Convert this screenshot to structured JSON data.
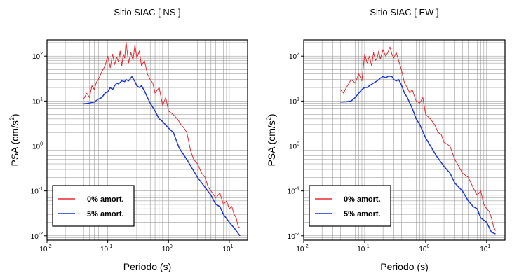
{
  "chart_data": [
    {
      "type": "line",
      "title": "Sitio SIAC [ NS ]",
      "xlabel": "Periodo (s)",
      "ylabel_base": "PSA (cm/s",
      "ylabel_sup": "2",
      "ylabel_end": ")",
      "xscale": "log",
      "yscale": "log",
      "xlim": [
        0.01,
        20
      ],
      "ylim": [
        0.008,
        230
      ],
      "grid": true,
      "legend_position": "bottom-left",
      "x_ticks": [
        {
          "base": "10",
          "exp": "-2"
        },
        {
          "base": "10",
          "exp": "-1"
        },
        {
          "base": "10",
          "exp": "0"
        },
        {
          "base": "10",
          "exp": "1"
        }
      ],
      "y_ticks": [
        {
          "base": "10",
          "exp": "-2"
        },
        {
          "base": "10",
          "exp": "-1"
        },
        {
          "base": "10",
          "exp": "0"
        },
        {
          "base": "10",
          "exp": "1"
        },
        {
          "base": "10",
          "exp": "2"
        }
      ],
      "series": [
        {
          "name": "0% amort.",
          "color": "#e8292e",
          "x": [
            0.04,
            0.045,
            0.05,
            0.055,
            0.06,
            0.065,
            0.07,
            0.08,
            0.09,
            0.1,
            0.11,
            0.12,
            0.13,
            0.14,
            0.15,
            0.16,
            0.17,
            0.18,
            0.19,
            0.2,
            0.22,
            0.24,
            0.26,
            0.28,
            0.3,
            0.33,
            0.36,
            0.4,
            0.45,
            0.5,
            0.55,
            0.6,
            0.7,
            0.8,
            0.9,
            1.0,
            1.2,
            1.4,
            1.6,
            1.8,
            2.0,
            2.3,
            2.6,
            3.0,
            3.5,
            4.0,
            4.5,
            5.0,
            6.0,
            7.0,
            8.0,
            9.0,
            10.0,
            11.0,
            12.0,
            13.0,
            14.0,
            15.0
          ],
          "y": [
            11,
            15,
            12,
            22,
            18,
            26,
            30,
            45,
            60,
            100,
            55,
            110,
            65,
            95,
            75,
            130,
            60,
            110,
            90,
            210,
            70,
            120,
            80,
            180,
            90,
            130,
            60,
            80,
            40,
            30,
            25,
            15,
            20,
            8,
            12,
            6,
            5,
            4,
            3,
            2.5,
            2,
            0.8,
            0.5,
            0.4,
            0.25,
            0.2,
            0.12,
            0.1,
            0.07,
            0.09,
            0.05,
            0.06,
            0.04,
            0.045,
            0.03,
            0.025,
            0.016,
            0.015
          ]
        },
        {
          "name": "5% amort.",
          "color": "#1a35d6",
          "x": [
            0.04,
            0.05,
            0.06,
            0.07,
            0.08,
            0.09,
            0.1,
            0.11,
            0.12,
            0.13,
            0.14,
            0.15,
            0.17,
            0.19,
            0.2,
            0.22,
            0.25,
            0.28,
            0.3,
            0.33,
            0.36,
            0.4,
            0.45,
            0.5,
            0.6,
            0.7,
            0.8,
            1.0,
            1.2,
            1.5,
            2.0,
            2.5,
            3.0,
            4.0,
            5.0,
            6.0,
            7.0,
            8.0,
            10.0,
            12.0,
            15.0
          ],
          "y": [
            8.6,
            9.0,
            9.5,
            11,
            12,
            15,
            16,
            20,
            18,
            22,
            25,
            24,
            28,
            27,
            30,
            28,
            35,
            27,
            22,
            20,
            22,
            17,
            12,
            9,
            6,
            4,
            3.5,
            2.5,
            2,
            0.9,
            0.5,
            0.3,
            0.2,
            0.12,
            0.08,
            0.05,
            0.045,
            0.03,
            0.02,
            0.015,
            0.01
          ]
        }
      ]
    },
    {
      "type": "line",
      "title": "Sitio SIAC [ EW ]",
      "xlabel": "Periodo (s)",
      "ylabel_base": "PSA (cm/s",
      "ylabel_sup": "2",
      "ylabel_end": ")",
      "xscale": "log",
      "yscale": "log",
      "xlim": [
        0.01,
        20
      ],
      "ylim": [
        0.008,
        230
      ],
      "grid": true,
      "legend_position": "bottom-left",
      "x_ticks": [
        {
          "base": "10",
          "exp": "-2"
        },
        {
          "base": "10",
          "exp": "-1"
        },
        {
          "base": "10",
          "exp": "0"
        },
        {
          "base": "10",
          "exp": "1"
        }
      ],
      "y_ticks": [
        {
          "base": "10",
          "exp": "-2"
        },
        {
          "base": "10",
          "exp": "-1"
        },
        {
          "base": "10",
          "exp": "0"
        },
        {
          "base": "10",
          "exp": "1"
        },
        {
          "base": "10",
          "exp": "2"
        }
      ],
      "series": [
        {
          "name": "0% amort.",
          "color": "#e8292e",
          "x": [
            0.04,
            0.045,
            0.05,
            0.06,
            0.07,
            0.08,
            0.09,
            0.1,
            0.11,
            0.12,
            0.13,
            0.14,
            0.15,
            0.16,
            0.17,
            0.18,
            0.2,
            0.22,
            0.24,
            0.26,
            0.28,
            0.3,
            0.33,
            0.36,
            0.4,
            0.45,
            0.5,
            0.55,
            0.6,
            0.7,
            0.8,
            0.9,
            1.0,
            1.2,
            1.4,
            1.6,
            1.8,
            2.0,
            2.5,
            3.0,
            3.5,
            4.0,
            5.0,
            6.0,
            7.0,
            8.0,
            9.0,
            10.0,
            11.0,
            12.0,
            13.0,
            14.0
          ],
          "y": [
            18,
            15,
            20,
            30,
            25,
            40,
            28,
            110,
            70,
            100,
            60,
            120,
            80,
            90,
            130,
            85,
            140,
            100,
            120,
            160,
            110,
            90,
            120,
            80,
            50,
            25,
            20,
            15,
            18,
            10,
            9,
            12,
            5,
            4,
            3,
            2,
            1.8,
            1.2,
            1.0,
            0.5,
            0.35,
            0.25,
            0.2,
            0.12,
            0.08,
            0.1,
            0.05,
            0.04,
            0.035,
            0.025,
            0.016,
            0.013
          ]
        },
        {
          "name": "5% amort.",
          "color": "#1a35d6",
          "x": [
            0.04,
            0.05,
            0.06,
            0.07,
            0.08,
            0.09,
            0.1,
            0.11,
            0.12,
            0.14,
            0.16,
            0.18,
            0.2,
            0.22,
            0.25,
            0.28,
            0.3,
            0.33,
            0.36,
            0.4,
            0.45,
            0.5,
            0.55,
            0.6,
            0.7,
            0.8,
            1.0,
            1.2,
            1.5,
            2.0,
            2.5,
            3.0,
            4.0,
            5.0,
            6.0,
            7.0,
            8.0,
            10.0,
            12.0,
            14.0
          ],
          "y": [
            9.5,
            9.6,
            10,
            12,
            15,
            18,
            20,
            20,
            22,
            25,
            28,
            32,
            35,
            33,
            36,
            35,
            30,
            28,
            30,
            23,
            15,
            12,
            9,
            7,
            4,
            3,
            1.5,
            1.0,
            0.6,
            0.35,
            0.25,
            0.15,
            0.1,
            0.06,
            0.045,
            0.04,
            0.025,
            0.02,
            0.012,
            0.011
          ]
        }
      ]
    }
  ]
}
